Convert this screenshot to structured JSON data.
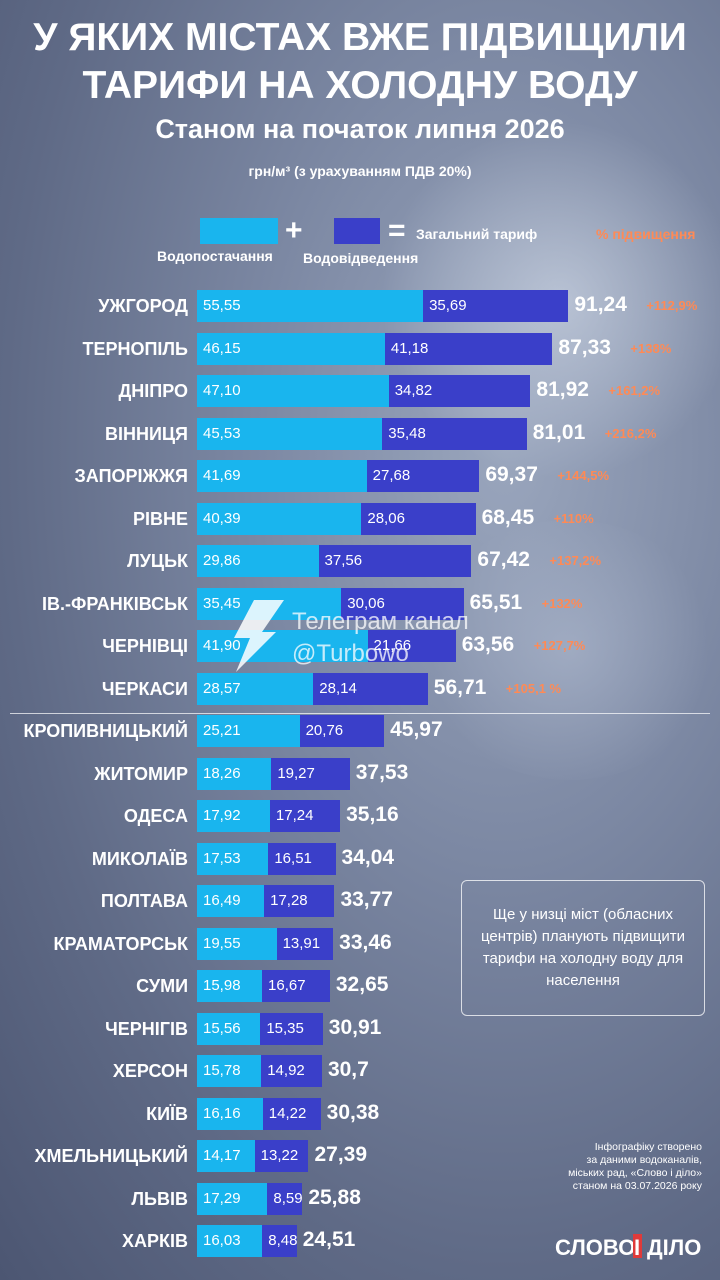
{
  "header": {
    "title_line1": "У ЯКИХ МІСТАХ ВЖЕ ПІДВИЩИЛИ",
    "title_line2": "ТАРИФИ НА ХОЛОДНУ ВОДУ",
    "subtitle": "Станом на початок липня 2026",
    "unit": "грн/м³ (з урахуванням ПДВ 20%)"
  },
  "legend": {
    "supply": "Водопостачання",
    "drainage": "Водовідведення",
    "plus": "+",
    "equals": "=",
    "total": "Загальний тариф",
    "increase": "% підвищення"
  },
  "colors": {
    "supply": "#19b5ee",
    "drainage": "#3a3fc9",
    "increase_text": "#ff8a55"
  },
  "chart_data": {
    "type": "bar",
    "orientation": "horizontal",
    "stacked": true,
    "categories": [
      "УЖГОРОД",
      "ТЕРНОПІЛЬ",
      "ДНІПРО",
      "ВІННИЦЯ",
      "ЗАПОРІЖЖЯ",
      "РІВНЕ",
      "ЛУЦЬК",
      "ІВ.-ФРАНКІВСЬК",
      "ЧЕРНІВЦІ",
      "ЧЕРКАСИ",
      "КРОПИВНИЦЬКИЙ",
      "ЖИТОМИР",
      "ОДЕСА",
      "МИКОЛАЇВ",
      "ПОЛТАВА",
      "КРАМАТОРСЬК",
      "СУМИ",
      "ЧЕРНІГІВ",
      "ХЕРСОН",
      "КИЇВ",
      "ХМЕЛЬНИЦЬКИЙ",
      "ЛЬВІВ",
      "ХАРКІВ"
    ],
    "series": [
      {
        "name": "Водопостачання",
        "values": [
          55.55,
          46.15,
          47.1,
          45.53,
          41.69,
          40.39,
          29.86,
          35.45,
          41.9,
          28.57,
          25.21,
          18.26,
          17.92,
          17.53,
          16.49,
          19.55,
          15.98,
          15.56,
          15.78,
          16.16,
          14.17,
          17.29,
          16.03
        ],
        "labels": [
          "55,55",
          "46,15",
          "47,10",
          "45,53",
          "41,69",
          "40,39",
          "29,86",
          "35,45",
          "41,90",
          "28,57",
          "25,21",
          "18,26",
          "17,92",
          "17,53",
          "16,49",
          "19,55",
          "15,98",
          "15,56",
          "15,78",
          "16,16",
          "14,17",
          "17,29",
          "16,03"
        ]
      },
      {
        "name": "Водовідведення",
        "values": [
          35.69,
          41.18,
          34.82,
          35.48,
          27.68,
          28.06,
          37.56,
          30.06,
          21.66,
          28.14,
          20.76,
          19.27,
          17.24,
          16.51,
          17.28,
          13.91,
          16.67,
          15.35,
          14.92,
          14.22,
          13.22,
          8.59,
          8.48
        ],
        "labels": [
          "35,69",
          "41,18",
          "34,82",
          "35,48",
          "27,68",
          "28,06",
          "37,56",
          "30,06",
          "21,66",
          "28,14",
          "20,76",
          "19,27",
          "17,24",
          "16,51",
          "17,28",
          "13,91",
          "16,67",
          "15,35",
          "14,92",
          "14,22",
          "13,22",
          "8,59",
          "8,48"
        ]
      }
    ],
    "totals": [
      91.24,
      87.33,
      81.92,
      81.01,
      69.37,
      68.45,
      67.42,
      65.51,
      63.56,
      56.71,
      45.97,
      37.53,
      35.16,
      34.04,
      33.77,
      33.46,
      32.65,
      30.91,
      30.7,
      30.38,
      27.39,
      25.88,
      24.51
    ],
    "total_labels": [
      "91,24",
      "87,33",
      "81,92",
      "81,01",
      "69,37",
      "68,45",
      "67,42",
      "65,51",
      "63,56",
      "56,71",
      "45,97",
      "37,53",
      "35,16",
      "34,04",
      "33,77",
      "33,46",
      "32,65",
      "30,91",
      "30,7",
      "30,38",
      "27,39",
      "25,88",
      "24,51"
    ],
    "increase_labels": [
      "+112,9%",
      "+138%",
      "+161,2%",
      "+216,2%",
      "+144,5%",
      "+110%",
      "+137,2%",
      "+132%",
      "+127,7%",
      "+105,1 %",
      "",
      "",
      "",
      "",
      "",
      "",
      "",
      "",
      "",
      "",
      "",
      "",
      ""
    ],
    "divider_after_index": 9
  },
  "note": "Ще у низці міст (обласних центрів) планують підвищити тарифи на холодну воду для населення",
  "credit": {
    "line1": "Інфографіку створено",
    "line2": "за даними водоканалів,",
    "line3": "міських рад, «Слово і діло»",
    "line4": "станом на 03.07.2026 року"
  },
  "logo": {
    "word1": "СЛОВО",
    "word2": "І",
    "word3": "ДІЛО"
  },
  "watermark": {
    "line1": "Телеграм канал",
    "line2": "@Turbowo"
  }
}
